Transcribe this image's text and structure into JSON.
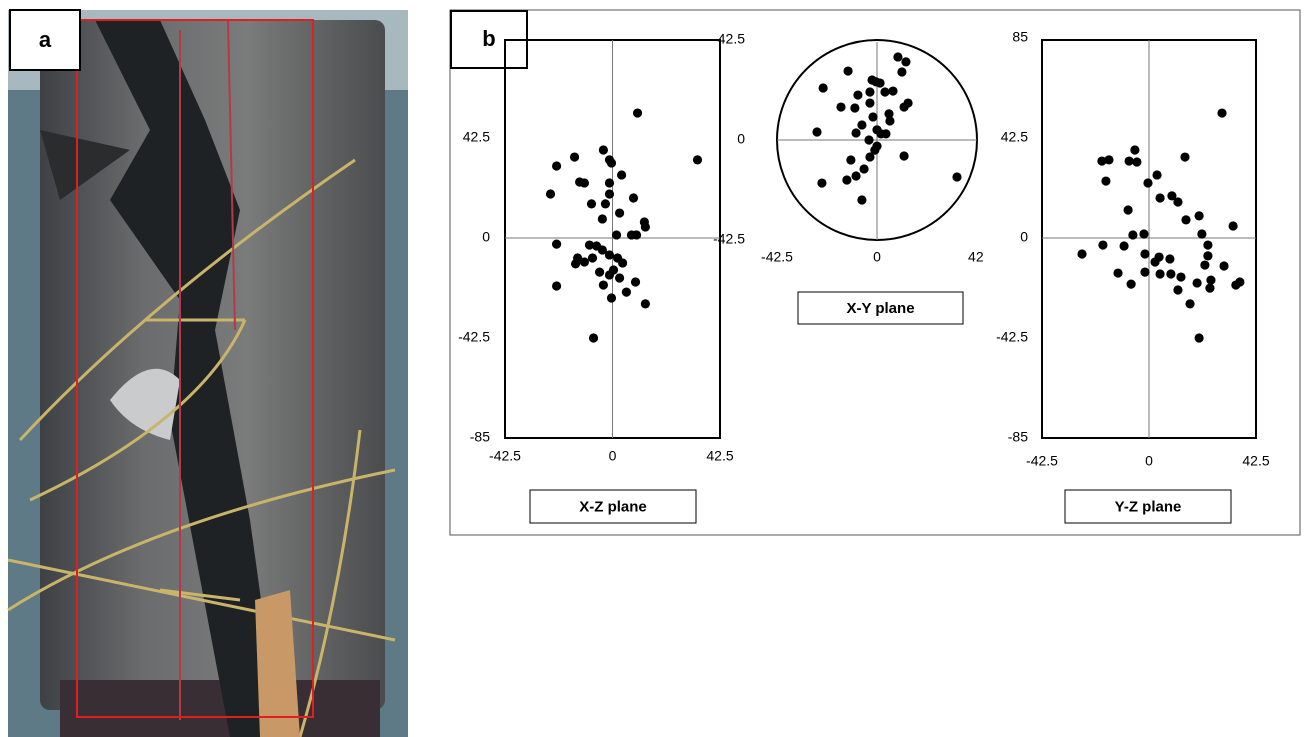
{
  "panels": {
    "a": {
      "label": "a"
    },
    "b": {
      "label": "b"
    }
  },
  "chart_data": [
    {
      "type": "scatter",
      "title": "X-Z plane",
      "color": "#000000",
      "xlim": [
        -42.5,
        42.5
      ],
      "ylim": [
        -85,
        85
      ],
      "xticks": [
        -42.5,
        0,
        42.5
      ],
      "yticks": [
        42.5,
        0,
        -42.5,
        -85
      ],
      "x": [
        9.9,
        33.6,
        -15,
        -22.1,
        -3.6,
        -1.2,
        -0.4,
        3.6,
        -24.5,
        -13,
        -11.1,
        -1.2,
        -1.2,
        -8.3,
        -2.8,
        8.3,
        12.6,
        13,
        2.8,
        -4,
        1.6,
        7.5,
        9.5,
        -22.1,
        -9.1,
        -6.3,
        -4,
        -13.8,
        -14.6,
        -11.1,
        -7.9,
        -1.2,
        2,
        4,
        -5.1,
        -1.2,
        0.4,
        2.8,
        -3.6,
        5.5,
        9.1,
        -22.1,
        -0.4,
        13,
        -7.5
      ],
      "values": [
        53.1,
        33.2,
        34.4,
        30.6,
        37.4,
        33.2,
        31.9,
        26.8,
        18.7,
        23.8,
        23.4,
        23.4,
        18.7,
        14.5,
        14.5,
        17,
        6.8,
        4.7,
        10.6,
        8.1,
        1.3,
        1.3,
        1.3,
        -2.6,
        -3,
        -3.4,
        -5.1,
        -8.5,
        -11,
        -10.2,
        -8.5,
        -7.2,
        -8.5,
        -10.6,
        -14.5,
        -15.7,
        -13.6,
        -17,
        -20,
        -23,
        -18.7,
        -20.4,
        -25.5,
        -28,
        -42.5
      ]
    },
    {
      "type": "scatter",
      "title": "X-Y plane",
      "color": "#000000",
      "xlim": [
        -42.5,
        42.5
      ],
      "ylim": [
        -42.5,
        42.5
      ],
      "xticks": [
        -42.5,
        0,
        42
      ],
      "yticks": [
        42.5,
        0,
        -42.5
      ],
      "x": [
        8.9,
        12.3,
        -12.3,
        10.6,
        -22.9,
        -2.1,
        -0.4,
        1.3,
        -8.1,
        -3,
        3.4,
        6.8,
        13.2,
        11.5,
        -15.3,
        -9.4,
        -3,
        -1.7,
        5.1,
        5.5,
        -25.5,
        -6.4,
        -8.9,
        0,
        1.7,
        3.8,
        -3.4,
        0,
        -0.9,
        -11.1,
        -3,
        11.5,
        -5.5,
        34,
        -23.4,
        -12.8,
        -8.9,
        -6.4
      ],
      "values": [
        35.3,
        33.2,
        29.3,
        28.9,
        22.1,
        25.5,
        24.7,
        24.2,
        19.1,
        20.4,
        20.4,
        20.8,
        15.7,
        14,
        14,
        13.6,
        15.7,
        9.8,
        11.1,
        8.1,
        3.4,
        6.4,
        3,
        4.3,
        2.6,
        2.6,
        0,
        -2.6,
        -4.3,
        -8.5,
        -7.2,
        -6.8,
        -12.3,
        -15.7,
        -18.3,
        -17,
        -15.3,
        -25.5
      ]
    },
    {
      "type": "scatter",
      "title": "Y-Z plane",
      "color": "#000000",
      "xlim": [
        -42.5,
        42.5
      ],
      "ylim": [
        -85,
        85
      ],
      "xticks": [
        -42.5,
        0,
        42.5
      ],
      "yticks": [
        85,
        42.5,
        0,
        -42.5,
        -85
      ],
      "x": [
        29,
        -18.7,
        -7.9,
        -5.6,
        -4.8,
        14.3,
        -15.9,
        -17.1,
        3.2,
        -0.4,
        9.1,
        11.5,
        4.4,
        -8.3,
        19.9,
        14.7,
        33.4,
        -6.4,
        -2,
        21,
        -18.3,
        -9.9,
        23.4,
        -26.6,
        4,
        2.4,
        -1.6,
        8.3,
        23.4,
        29.8,
        22.2,
        -12.3,
        -1.6,
        4.4,
        8.7,
        12.7,
        19.1,
        24.6,
        24.2,
        34.5,
        36.1,
        -7.1,
        11.5,
        16.3,
        19.9
      ],
      "values": [
        53.1,
        32.7,
        32.7,
        37.4,
        32.3,
        34.4,
        33.2,
        24.2,
        26.8,
        23.4,
        17.9,
        15.3,
        17,
        11.9,
        9.4,
        7.7,
        5.1,
        1.3,
        1.7,
        1.7,
        -3,
        -3.4,
        -3,
        -6.8,
        -8.1,
        -10.2,
        -6.8,
        -8.9,
        -7.6,
        -11.9,
        -11.5,
        -14.9,
        -14.5,
        -15.3,
        -15.3,
        -16.6,
        -19.1,
        -17.9,
        -21.3,
        -20,
        -18.7,
        -19.6,
        -22.1,
        -28,
        -42.5
      ]
    }
  ]
}
